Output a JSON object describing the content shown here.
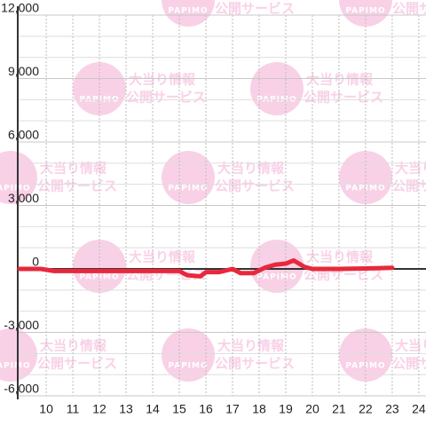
{
  "watermark": {
    "logo": "PAPIMO",
    "line1": "大当り情報",
    "line2": "公開サービス"
  },
  "chart_data": {
    "type": "line",
    "x": [
      9,
      9.8,
      10.3,
      15,
      15.3,
      15.8,
      16,
      16.5,
      17,
      17.3,
      17.8,
      18.2,
      18.6,
      19,
      19.3,
      19.7,
      20,
      21,
      22,
      23
    ],
    "series": [
      {
        "color": "#e8283c",
        "values": [
          0,
          0,
          -100,
          -100,
          -300,
          -350,
          -150,
          -150,
          0,
          -200,
          -200,
          50,
          200,
          250,
          400,
          100,
          0,
          0,
          20,
          50
        ]
      }
    ],
    "xlim": [
      8.93,
      24.27
    ],
    "xticks": [
      10,
      11,
      12,
      13,
      14,
      15,
      16,
      17,
      18,
      19,
      20,
      21,
      22,
      23,
      24
    ],
    "ylim": [
      -6000,
      12000
    ],
    "yticks": [
      {
        "value": -6000,
        "label": "-6,000"
      },
      {
        "value": -3000,
        "label": "-3,000"
      },
      0,
      {
        "value": 3000,
        "label": "3,000"
      },
      {
        "value": 6000,
        "label": "6,000"
      },
      {
        "value": 9000,
        "label": "9,000"
      },
      {
        "value": 12000,
        "label": "12,000"
      }
    ],
    "grid": true
  }
}
